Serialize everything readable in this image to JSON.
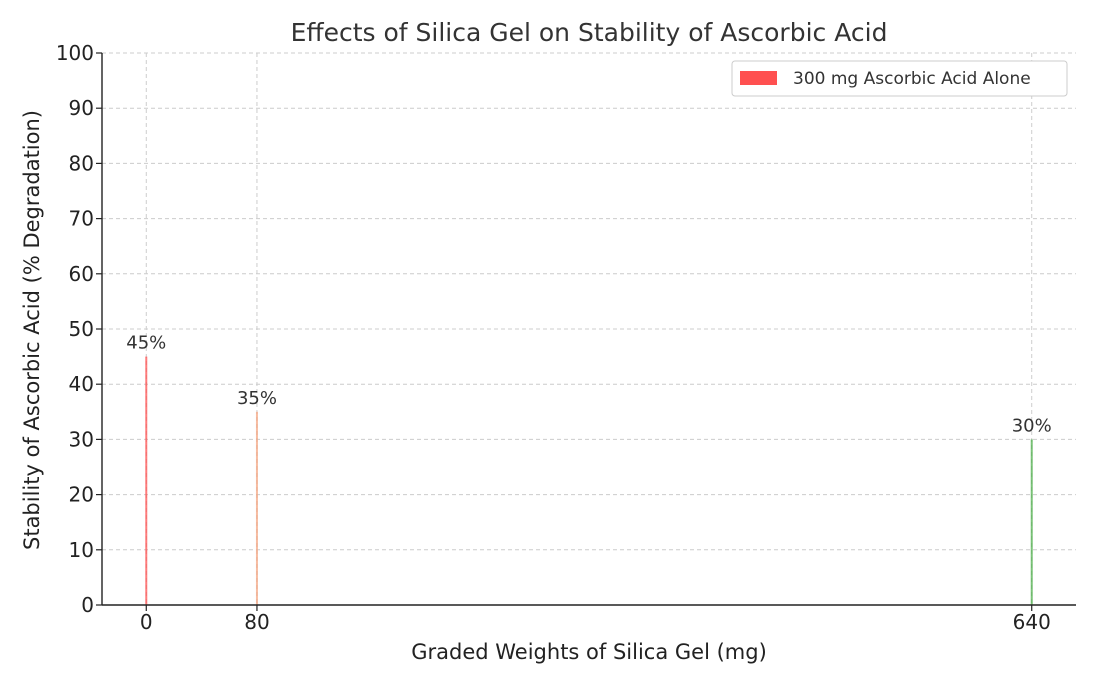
{
  "chart_data": {
    "type": "bar",
    "title": "Effects of Silica Gel on Stability of Ascorbic Acid",
    "xlabel": "Graded Weights of Silica Gel (mg)",
    "ylabel": "Stability of Ascorbic Acid (% Degradation)",
    "x": [
      0,
      80,
      640
    ],
    "values": [
      45,
      35,
      30
    ],
    "value_labels": [
      "45%",
      "35%",
      "30%"
    ],
    "bar_colors": [
      "#ff5050",
      "#f4a582",
      "#4daf4a"
    ],
    "xticks": [
      0,
      80,
      640
    ],
    "xlim": [
      -32,
      672
    ],
    "ylim": [
      0,
      100
    ],
    "yticks": [
      0,
      10,
      20,
      30,
      40,
      50,
      60,
      70,
      80,
      90,
      100
    ],
    "grid": true,
    "legend": {
      "placement": "top-right",
      "entries": [
        {
          "label": "300 mg Ascorbic Acid Alone",
          "color": "#ff5050"
        }
      ]
    }
  }
}
